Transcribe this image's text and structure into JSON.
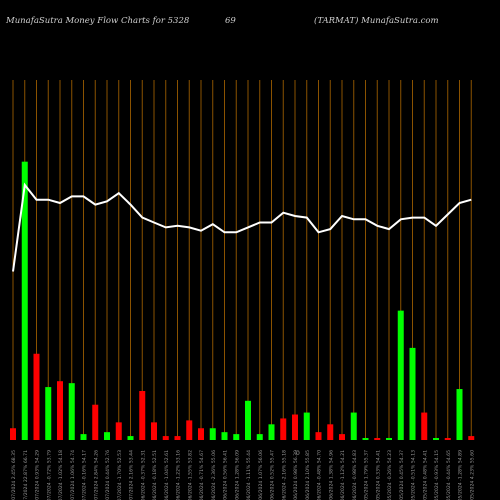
{
  "header": {
    "site_title": "MunafaSutra  Money Flow  Charts for 5328",
    "code": "69",
    "company": "(TARMAT) MunafaSutra.com"
  },
  "colors": {
    "background": "#000000",
    "grid": "#8a5200",
    "up_bar": "#00ff00",
    "down_bar": "#ff0000",
    "price_line": "#ffffff",
    "tick_text": "#9a9a9a"
  },
  "chart_data": {
    "type": "bar",
    "description_type": "money-flow bars with price line overlay",
    "axis_marker": "0",
    "categories": [
      "15/07/2024 2.45% 68.35",
      "12/07/2024 22.87% 66.71",
      "11/07/2024 0.93% 54.29",
      "10/07/2024 -0.72% 53.79",
      "09/07/2024 -1.02% 54.18",
      "08/07/2024 1.06% 54.74",
      "05/07/2024 -0.16% 54.17",
      "04/07/2024 2.84% 54.26",
      "03/07/2024 0.44% 52.76",
      "02/07/2024 -1.70% 52.53",
      "01/07/2024 2.16% 53.44",
      "28/06/2024 -0.37% 52.31",
      "27/06/2024 -0.18% 52.51",
      "26/06/2024 -1.04% 52.61",
      "25/06/2024 -1.22% 53.16",
      "24/06/2024 -1.55% 53.82",
      "21/06/2024 -0.71% 54.67",
      "20/06/2024 -2.36% 55.06",
      "19/06/2024 0.56% 56.41",
      "18/06/2024 1.28% 56.09",
      "14/06/2024 -1.11% 55.44",
      "13/06/2024 1.07% 56.06",
      "12/06/2024 0.52% 55.47",
      "11/06/2024 -2.16% 55.18",
      "10/06/2024 0.98% 56.39",
      "07/06/2024 2.10% 55.85",
      "06/06/2024 -0.48% 54.70",
      "05/06/2024 1.38% 54.96",
      "04/06/2024 -1.12% 54.21",
      "03/06/2024 -0.98% 54.83",
      "31/05/2024 1.79% 55.37",
      "30/05/2024 0.33% 54.41",
      "29/05/2024 -0.26% 54.23",
      "28/05/2024 0.45% 54.37",
      "27/05/2024 -0.51% 54.13",
      "24/05/2024 0.48% 54.41",
      "23/05/2024 -0.93% 54.15",
      "22/05/2024 -0.44% 54.65",
      "21/05/2024 -1.28% 54.89",
      "18/05/2024 4.23% 55.60"
    ],
    "series": [
      {
        "values": [
          -0.6,
          14.2,
          -4.4,
          -2.7,
          -3.0,
          -2.9,
          -0.3,
          -1.8,
          -0.4,
          -0.9,
          -0.2,
          -2.5,
          -0.9,
          -0.2,
          -0.2,
          -1.0,
          -0.6,
          -0.6,
          -0.4,
          -0.3,
          2.0,
          0.3,
          0.8,
          1.1,
          -1.3,
          1.4,
          0.4,
          -0.8,
          0.3,
          -1.4,
          0.1,
          -0.1,
          0.1,
          6.6,
          4.7,
          -1.4,
          -0.1,
          -0.1,
          2.6,
          -0.2
        ],
        "directions": [
          "down",
          "up",
          "down",
          "up",
          "down",
          "up",
          "up",
          "down",
          "up",
          "down",
          "up",
          "down",
          "down",
          "down",
          "down",
          "down",
          "down",
          "up",
          "up",
          "up",
          "up",
          "up",
          "up",
          "down",
          "down",
          "up",
          "down",
          "down",
          "down",
          "up",
          "up",
          "down",
          "up",
          "up",
          "up",
          "down",
          "up",
          "down",
          "up",
          "down"
        ]
      },
      {
        "name": "price",
        "values": [
          55.2,
          60.5,
          59.6,
          59.6,
          59.4,
          59.8,
          59.8,
          59.3,
          59.5,
          60.0,
          59.3,
          58.5,
          58.2,
          57.9,
          58.0,
          57.9,
          57.7,
          58.1,
          57.6,
          57.6,
          57.9,
          58.2,
          58.2,
          58.8,
          58.6,
          58.5,
          57.6,
          57.8,
          58.6,
          58.4,
          58.4,
          58.0,
          57.8,
          58.4,
          58.5,
          58.5,
          58.0,
          58.7,
          59.4,
          59.6
        ]
      }
    ]
  }
}
